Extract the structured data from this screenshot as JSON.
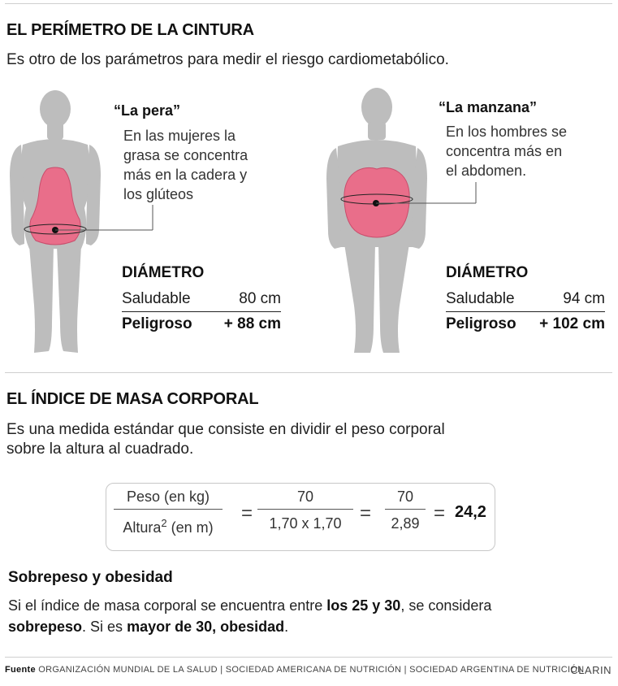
{
  "section1": {
    "title": "EL PERÍMETRO DE LA CINTURA",
    "lead": "Es otro de los parámetros para medir el riesgo cardiometabólico."
  },
  "pear": {
    "title": "“La pera”",
    "lines": [
      "En las mujeres la",
      "grasa se concentra",
      "más en la cadera y",
      "los glúteos"
    ],
    "diameter_title": "DIÁMETRO",
    "healthy_label": "Saludable",
    "healthy_value": "80 cm",
    "danger_label": "Peligroso",
    "danger_value": "+ 88 cm"
  },
  "apple": {
    "title": "“La manzana”",
    "lines": [
      "En los hombres se",
      "concentra más en",
      "el abdomen."
    ],
    "diameter_title": "DIÁMETRO",
    "healthy_label": "Saludable",
    "healthy_value": "94 cm",
    "danger_label": "Peligroso",
    "danger_value": "+ 102 cm"
  },
  "section2": {
    "title": "EL ÍNDICE DE MASA CORPORAL",
    "lead_lines": [
      "Es una medida estándar que consiste en dividir el peso corporal",
      "sobre la altura al cuadrado."
    ]
  },
  "formula": {
    "num1": "Peso (en kg)",
    "den1_pre": "Altura",
    "den1_sup": "2",
    "den1_post": " (en m)",
    "num2": "70",
    "den2": "1,70 x 1,70",
    "num3": "70",
    "den3": "2,89",
    "equals": "=",
    "result": "24,2"
  },
  "overweight": {
    "title": "Sobrepeso y obesidad",
    "p1": "Si el índice de masa corporal se encuentra entre ",
    "b1": "los 25 y 30",
    "p2": ", se considera",
    "b2": "sobrepeso",
    "p3": ". Si es ",
    "b3": "mayor de 30, obesidad",
    "p4": "."
  },
  "footer": {
    "label": "Fuente",
    "sources": "ORGANIZACIÓN MUNDIAL DE LA SALUD | SOCIEDAD AMERICANA DE NUTRICIÓN | SOCIEDAD ARGENTINA DE NUTRICIÓN",
    "credit": "CLARIN"
  },
  "colors": {
    "body": "#bdbdbd",
    "fat": "#e96e8a",
    "fat_stroke": "#c94d6c"
  }
}
